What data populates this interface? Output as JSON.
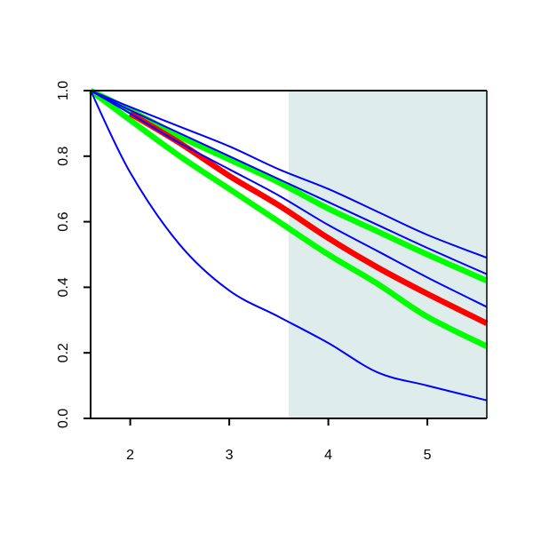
{
  "chart_data": {
    "type": "line",
    "title": "",
    "xlabel": "",
    "ylabel": "",
    "xlim": [
      1.6,
      5.6
    ],
    "ylim": [
      0.0,
      1.0
    ],
    "x_ticks": [
      2,
      3,
      4,
      5
    ],
    "x_tick_labels": [
      "2",
      "3",
      "4",
      "5"
    ],
    "y_ticks": [
      0.0,
      0.2,
      0.4,
      0.6,
      0.8,
      1.0
    ],
    "y_tick_labels": [
      "0.0",
      "0.2",
      "0.4",
      "0.6",
      "0.8",
      "1.0"
    ],
    "grid": false,
    "legend": "none",
    "shaded_region": {
      "x_start": 3.6,
      "x_end": 5.6,
      "color": "#dfecec"
    },
    "series": [
      {
        "color": "#0000ff",
        "width": "thin",
        "x": [
          1.6,
          2.0,
          2.5,
          3.0,
          3.5,
          4.0,
          4.5,
          5.0,
          5.6
        ],
        "y": [
          1.0,
          0.75,
          0.53,
          0.39,
          0.31,
          0.23,
          0.14,
          0.1,
          0.055
        ]
      },
      {
        "color": "#0000ff",
        "width": "thin",
        "x": [
          1.6,
          2.0,
          2.5,
          3.0,
          3.5,
          4.0,
          4.5,
          5.0,
          5.6
        ],
        "y": [
          1.0,
          0.95,
          0.89,
          0.83,
          0.76,
          0.7,
          0.63,
          0.56,
          0.49
        ]
      },
      {
        "color": "#0000ff",
        "width": "thin",
        "x": [
          1.6,
          2.0,
          2.5,
          3.0,
          3.5,
          4.0,
          4.5,
          5.0,
          5.6
        ],
        "y": [
          1.0,
          0.94,
          0.87,
          0.8,
          0.73,
          0.66,
          0.59,
          0.52,
          0.44
        ]
      },
      {
        "color": "#0000ff",
        "width": "thin",
        "x": [
          1.6,
          2.0,
          2.5,
          3.0,
          3.5,
          4.0,
          4.5,
          5.0,
          5.6
        ],
        "y": [
          1.0,
          0.93,
          0.84,
          0.76,
          0.68,
          0.59,
          0.51,
          0.43,
          0.34
        ]
      },
      {
        "color": "#00ff00",
        "width": "thick",
        "x": [
          1.6,
          2.0,
          2.5,
          3.0,
          3.5,
          4.0,
          4.5,
          5.0,
          5.6
        ],
        "y": [
          1.0,
          0.94,
          0.86,
          0.79,
          0.72,
          0.64,
          0.57,
          0.5,
          0.42
        ]
      },
      {
        "color": "#00ff00",
        "width": "thick",
        "x": [
          1.6,
          2.0,
          2.5,
          3.0,
          3.5,
          4.0,
          4.5,
          5.0,
          5.6
        ],
        "y": [
          1.0,
          0.91,
          0.8,
          0.7,
          0.6,
          0.5,
          0.41,
          0.31,
          0.22
        ]
      },
      {
        "color": "#ff0000",
        "width": "thick",
        "x": [
          2.0,
          2.5,
          3.0,
          3.5,
          4.0,
          4.5,
          5.0,
          5.6
        ],
        "y": [
          0.93,
          0.84,
          0.74,
          0.65,
          0.55,
          0.46,
          0.38,
          0.29
        ]
      }
    ]
  }
}
